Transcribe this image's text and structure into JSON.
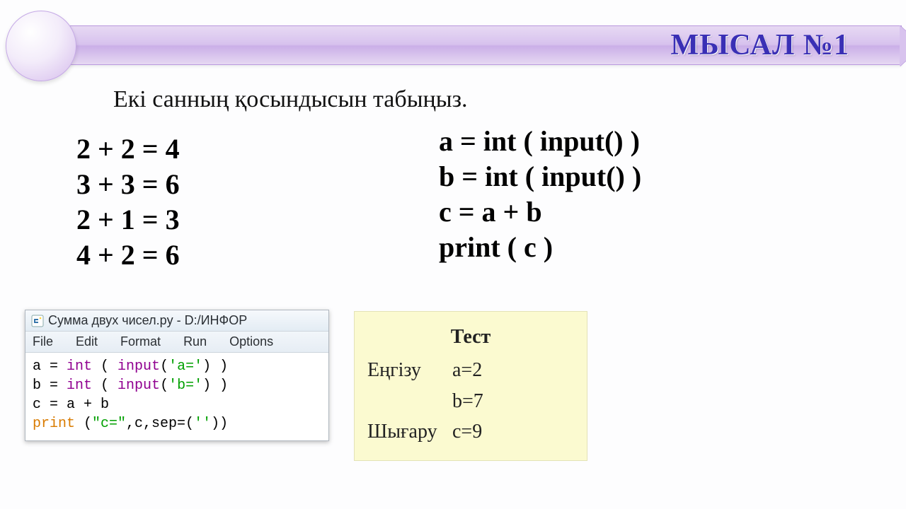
{
  "banner": {
    "title": "МЫСАЛ №1",
    "colors": {
      "bar_gradient": [
        "#e7d9f3",
        "#d7c2ee",
        "#caafe8",
        "#e6d8f2"
      ],
      "border": "#b999de",
      "circle_gradient": [
        "#ffffff",
        "#f3ecfa",
        "#e0cdf1",
        "#d3bdec"
      ],
      "title_color": "#3a2fb5"
    }
  },
  "task": "Екі санның қосындысын табыңыз.",
  "equations": [
    "2 + 2 = 4",
    "3 + 3 = 6",
    "2 + 1 = 3",
    "4 + 2 = 6"
  ],
  "pseudocode": [
    "a = int ( input() )",
    "b = int ( input() )",
    "c = a + b",
    "print ( c )"
  ],
  "idle": {
    "title": "Сумма двух чисел.py - D:/ИНФОР",
    "menu": [
      "File",
      "Edit",
      "Format",
      "Run",
      "Options"
    ],
    "code_tokens": [
      [
        {
          "t": "a = ",
          "c": "plain"
        },
        {
          "t": "int",
          "c": "fn"
        },
        {
          "t": " ( ",
          "c": "plain"
        },
        {
          "t": "input",
          "c": "fn"
        },
        {
          "t": "(",
          "c": "plain"
        },
        {
          "t": "'a='",
          "c": "str"
        },
        {
          "t": ") )",
          "c": "plain"
        }
      ],
      [
        {
          "t": "b = ",
          "c": "plain"
        },
        {
          "t": "int",
          "c": "fn"
        },
        {
          "t": " ( ",
          "c": "plain"
        },
        {
          "t": "input",
          "c": "fn"
        },
        {
          "t": "(",
          "c": "plain"
        },
        {
          "t": "'b='",
          "c": "str"
        },
        {
          "t": ") )",
          "c": "plain"
        }
      ],
      [
        {
          "t": "c = a + b",
          "c": "plain"
        }
      ],
      [
        {
          "t": "print",
          "c": "kw"
        },
        {
          "t": " (",
          "c": "plain"
        },
        {
          "t": "\"c=\"",
          "c": "str"
        },
        {
          "t": ",c,sep=(",
          "c": "plain"
        },
        {
          "t": "''",
          "c": "str"
        },
        {
          "t": "))",
          "c": "plain"
        }
      ]
    ]
  },
  "test": {
    "title": "Тест",
    "rows": [
      {
        "label": "Еңгізу",
        "value": "a=2"
      },
      {
        "label": "",
        "value": "b=7"
      },
      {
        "label": "Шығару",
        "value": "c=9"
      }
    ],
    "background": "#fbfad0"
  }
}
